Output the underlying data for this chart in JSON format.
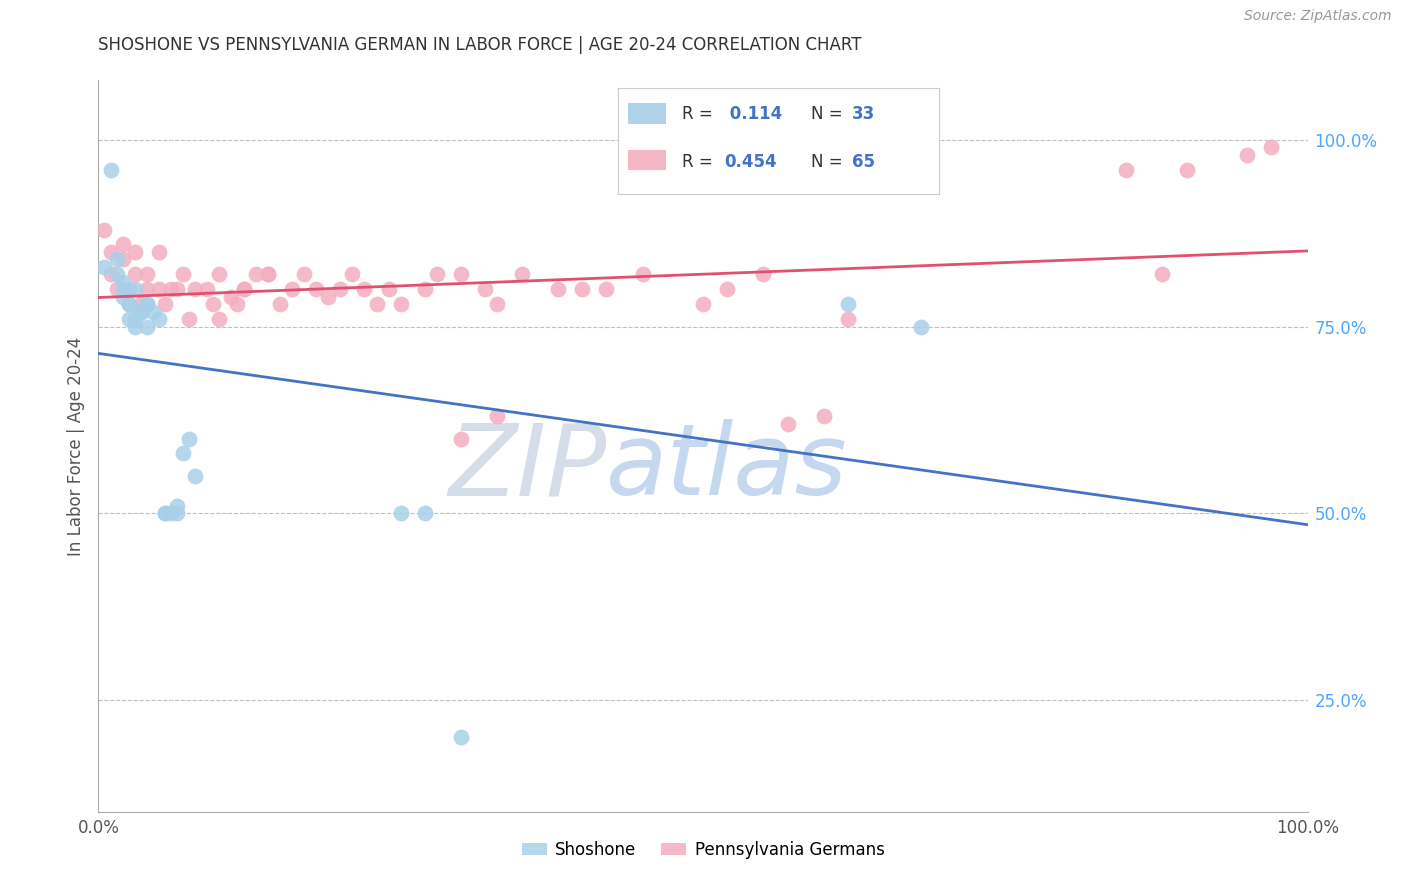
{
  "title": "SHOSHONE VS PENNSYLVANIA GERMAN IN LABOR FORCE | AGE 20-24 CORRELATION CHART",
  "source": "Source: ZipAtlas.com",
  "ylabel": "In Labor Force | Age 20-24",
  "xlim": [
    0.0,
    1.0
  ],
  "ylim": [
    0.1,
    1.08
  ],
  "x_tick_labels": [
    "0.0%",
    "100.0%"
  ],
  "y_tick_labels_right": [
    "25.0%",
    "50.0%",
    "75.0%",
    "100.0%"
  ],
  "y_ticks_right": [
    0.25,
    0.5,
    0.75,
    1.0
  ],
  "legend_label_blue": "Shoshone",
  "legend_label_pink": "Pennsylvania Germans",
  "blue_color": "#a8cfe8",
  "pink_color": "#f4aec0",
  "blue_line_color": "#4472c4",
  "pink_line_color": "#e05070",
  "watermark_zip_color": "#d0d8e8",
  "watermark_atlas_color": "#c8ddf0",
  "right_tick_color": "#4da6ff",
  "shoshone_x": [
    0.005,
    0.01,
    0.015,
    0.015,
    0.02,
    0.02,
    0.02,
    0.025,
    0.025,
    0.025,
    0.03,
    0.03,
    0.03,
    0.035,
    0.035,
    0.04,
    0.04,
    0.04,
    0.045,
    0.05,
    0.055,
    0.055,
    0.06,
    0.065,
    0.065,
    0.07,
    0.075,
    0.08,
    0.25,
    0.27,
    0.62,
    0.68,
    0.3
  ],
  "shoshone_y": [
    0.83,
    0.96,
    0.82,
    0.84,
    0.8,
    0.79,
    0.81,
    0.78,
    0.78,
    0.76,
    0.8,
    0.76,
    0.75,
    0.77,
    0.77,
    0.78,
    0.78,
    0.75,
    0.77,
    0.76,
    0.5,
    0.5,
    0.5,
    0.5,
    0.51,
    0.58,
    0.6,
    0.55,
    0.5,
    0.5,
    0.78,
    0.75,
    0.2
  ],
  "pa_german_x": [
    0.005,
    0.01,
    0.01,
    0.015,
    0.02,
    0.02,
    0.025,
    0.03,
    0.03,
    0.035,
    0.04,
    0.04,
    0.05,
    0.05,
    0.055,
    0.06,
    0.065,
    0.07,
    0.075,
    0.08,
    0.09,
    0.095,
    0.1,
    0.11,
    0.115,
    0.12,
    0.13,
    0.14,
    0.15,
    0.16,
    0.17,
    0.18,
    0.19,
    0.2,
    0.21,
    0.22,
    0.23,
    0.24,
    0.25,
    0.27,
    0.28,
    0.3,
    0.32,
    0.33,
    0.35,
    0.38,
    0.4,
    0.42,
    0.45,
    0.5,
    0.52,
    0.55,
    0.57,
    0.6,
    0.62,
    0.3,
    0.33,
    0.1,
    0.12,
    0.14,
    0.85,
    0.88,
    0.9,
    0.95,
    0.97
  ],
  "pa_german_y": [
    0.88,
    0.82,
    0.85,
    0.8,
    0.84,
    0.86,
    0.8,
    0.82,
    0.85,
    0.78,
    0.82,
    0.8,
    0.85,
    0.8,
    0.78,
    0.8,
    0.8,
    0.82,
    0.76,
    0.8,
    0.8,
    0.78,
    0.82,
    0.79,
    0.78,
    0.8,
    0.82,
    0.82,
    0.78,
    0.8,
    0.82,
    0.8,
    0.79,
    0.8,
    0.82,
    0.8,
    0.78,
    0.8,
    0.78,
    0.8,
    0.82,
    0.82,
    0.8,
    0.78,
    0.82,
    0.8,
    0.8,
    0.8,
    0.82,
    0.78,
    0.8,
    0.82,
    0.62,
    0.63,
    0.76,
    0.6,
    0.63,
    0.76,
    0.8,
    0.82,
    0.96,
    0.82,
    0.96,
    0.98,
    0.99
  ]
}
